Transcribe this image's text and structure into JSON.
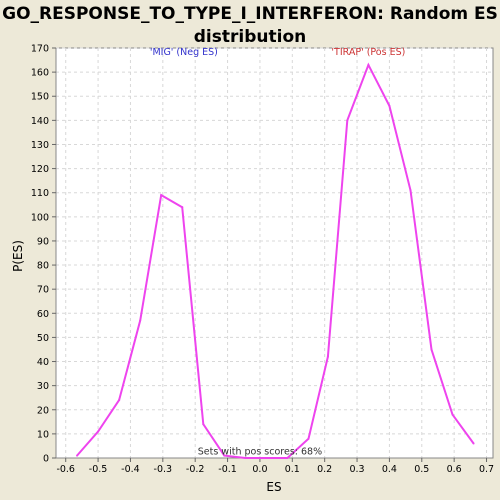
{
  "chart_data": {
    "type": "line",
    "title_lines": [
      "GO_RESPONSE_TO_TYPE_I_INTERFERON: Random ES",
      "distribution"
    ],
    "xlabel": "ES",
    "ylabel": "P(ES)",
    "xlim": [
      -0.63,
      0.72
    ],
    "ylim": [
      0,
      170
    ],
    "x_ticks": [
      -0.6,
      -0.5,
      -0.4,
      -0.3,
      -0.2,
      -0.1,
      0.0,
      0.1,
      0.2,
      0.3,
      0.4,
      0.5,
      0.6,
      0.7
    ],
    "x_tick_labels": [
      "-0.6",
      "-0.5",
      "-0.4",
      "-0.3",
      "-0.2",
      "-0.1",
      "0.0",
      "0.1",
      "0.2",
      "0.3",
      "0.4",
      "0.5",
      "0.6",
      "0.7"
    ],
    "y_ticks": [
      0,
      10,
      20,
      30,
      40,
      50,
      60,
      70,
      80,
      90,
      100,
      110,
      120,
      130,
      140,
      150,
      160,
      170
    ],
    "y_tick_labels": [
      "0",
      "10",
      "20",
      "30",
      "40",
      "50",
      "60",
      "70",
      "80",
      "90",
      "100",
      "110",
      "120",
      "130",
      "140",
      "150",
      "160",
      "170"
    ],
    "grid": true,
    "series": [
      {
        "color": "#ee44ee",
        "x": [
          -0.565,
          -0.5,
          -0.435,
          -0.37,
          -0.305,
          -0.24,
          -0.175,
          -0.11,
          -0.045,
          0.02,
          0.085,
          0.15,
          0.21,
          0.27,
          0.335,
          0.4,
          0.465,
          0.53,
          0.595,
          0.66
        ],
        "y": [
          1,
          11,
          24,
          57,
          109,
          104,
          14,
          1,
          0,
          0,
          0,
          8,
          42,
          140,
          163,
          146,
          111,
          45,
          18,
          6
        ]
      }
    ],
    "annotations": [
      {
        "text": "'MIG' (Neg ES)",
        "x": -0.235,
        "y": 167,
        "color": "#3333cc"
      },
      {
        "text": "'TIRAP' (Pos ES)",
        "x": 0.335,
        "y": 167,
        "color": "#cc3333"
      },
      {
        "text": "Sets with pos scores: 68%",
        "x": 0.0,
        "y": 1.5,
        "color": "#333333"
      }
    ]
  }
}
